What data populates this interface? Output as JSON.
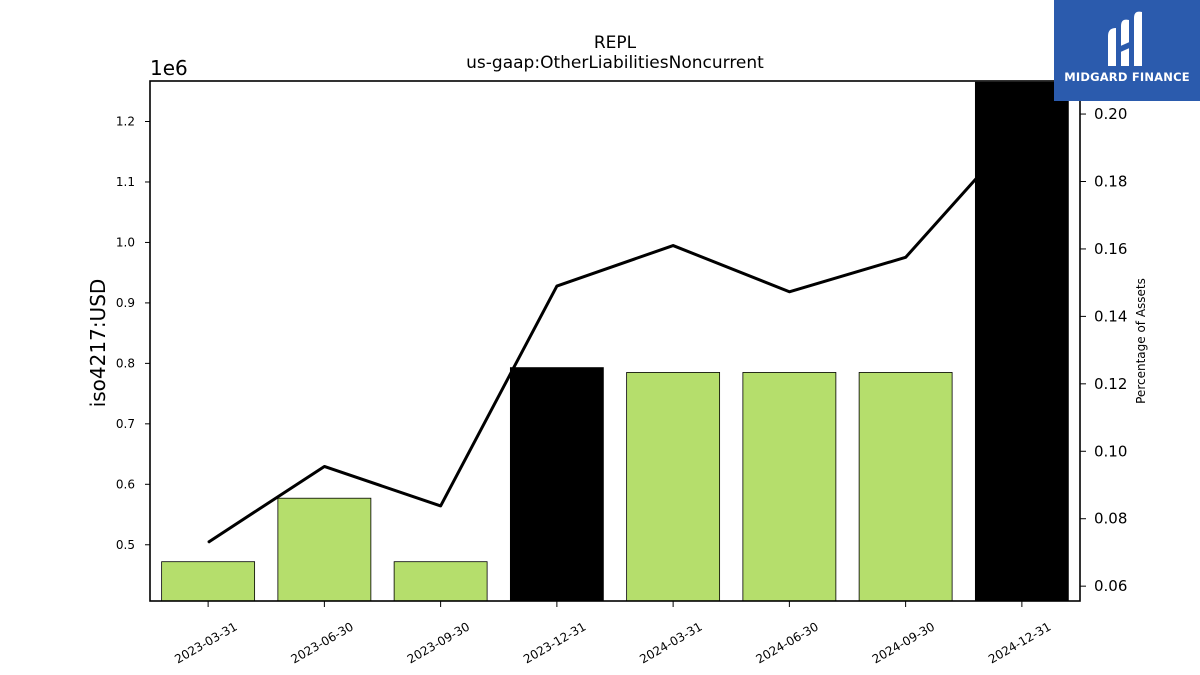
{
  "chart_data": {
    "type": "bar",
    "title": "REPL",
    "subtitle": "us-gaap:OtherLiabilitiesNoncurrent",
    "ylabel": "iso4217:USD",
    "y_offset_label": "1e6",
    "y2label": "Percentage of Assets",
    "categories": [
      "2023-03-31",
      "2023-06-30",
      "2023-09-30",
      "2023-12-31",
      "2024-03-31",
      "2024-06-30",
      "2024-09-30",
      "2024-12-31"
    ],
    "series": [
      {
        "type": "bar",
        "axis": "left",
        "values": [
          472000,
          577000,
          472000,
          793000,
          785000,
          785000,
          785000,
          1265000
        ],
        "colors": [
          "#b5de6c",
          "#b5de6c",
          "#b5de6c",
          "#000000",
          "#b5de6c",
          "#b5de6c",
          "#b5de6c",
          "#000000"
        ]
      },
      {
        "type": "line",
        "axis": "right",
        "values": [
          0.073,
          0.0955,
          0.0838,
          0.149,
          0.161,
          0.1473,
          0.1575,
          0.196
        ],
        "color": "#000000"
      }
    ],
    "ylim": [
      407000,
      1267000
    ],
    "yticks": [
      0.5,
      0.6,
      0.7,
      0.8,
      0.9,
      1.0,
      1.1,
      1.2
    ],
    "ytick_labels": [
      "0.5",
      "0.6",
      "0.7",
      "0.8",
      "0.9",
      "1.0",
      "1.1",
      "1.2"
    ],
    "y2lim": [
      0.0556,
      0.2098
    ],
    "y2ticks": [
      0.06,
      0.08,
      0.1,
      0.12,
      0.14,
      0.16,
      0.18,
      0.2
    ],
    "y2tick_labels": [
      "0.06",
      "0.08",
      "0.10",
      "0.12",
      "0.14",
      "0.16",
      "0.18",
      "0.20"
    ],
    "grid": false
  },
  "logo": {
    "text": "MIDGARD FINANCE",
    "color": "#2b5bad"
  }
}
